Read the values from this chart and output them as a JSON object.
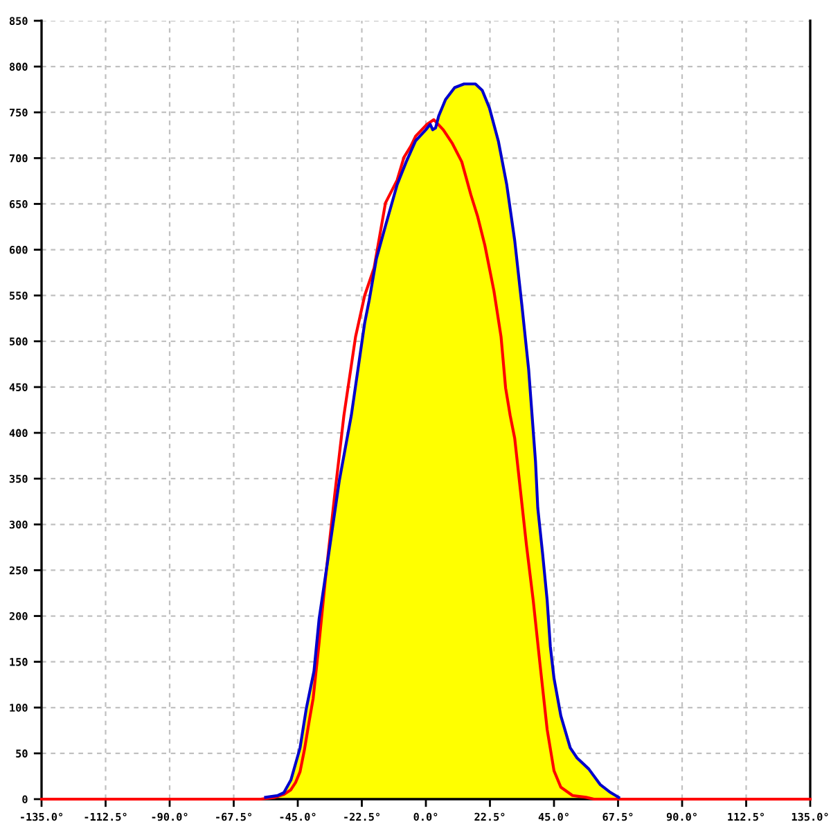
{
  "chart_data": {
    "type": "line",
    "xlim": [
      -135,
      135
    ],
    "ylim": [
      0,
      850
    ],
    "grid": true,
    "line_style": "solid",
    "xticks": [
      {
        "value": -135,
        "label": "-135.0°"
      },
      {
        "value": -112.5,
        "label": "-112.5°"
      },
      {
        "value": -90,
        "label": "-90.0°"
      },
      {
        "value": -67.5,
        "label": "-67.5°"
      },
      {
        "value": -45,
        "label": "-45.0°"
      },
      {
        "value": -22.5,
        "label": "-22.5°"
      },
      {
        "value": 0,
        "label": "0.0°"
      },
      {
        "value": 22.5,
        "label": "22.5°"
      },
      {
        "value": 45,
        "label": "45.0°"
      },
      {
        "value": 67.5,
        "label": "67.5°"
      },
      {
        "value": 90,
        "label": "90.0°"
      },
      {
        "value": 112.5,
        "label": "112.5°"
      },
      {
        "value": 135,
        "label": "135.0°"
      }
    ],
    "yticks": [
      0,
      50,
      100,
      150,
      200,
      250,
      300,
      350,
      400,
      450,
      500,
      550,
      600,
      650,
      700,
      750,
      800,
      850
    ],
    "series": [
      {
        "type": "area",
        "color": "#ffff00",
        "x": [
          -58,
          -56.3,
          -52,
          -49.9,
          -47.4,
          -44.2,
          -42,
          -39.3,
          -37.5,
          -34.4,
          -30.4,
          -26.2,
          -21.5,
          -19.9,
          -17.4,
          -14.2,
          -10.1,
          -6.9,
          -3.6,
          0,
          1.5,
          2.4,
          3.4,
          4.5,
          6.9,
          10.1,
          13.4,
          17.4,
          19.8,
          22.3,
          25.5,
          28.4,
          31.2,
          33.7,
          36.1,
          38.5,
          39.3,
          41,
          42.6,
          43.7,
          45,
          47.4,
          50.7,
          53.1,
          57.2,
          61.2,
          64.5,
          67.7,
          69
        ],
        "values": [
          0,
          2,
          4,
          7,
          21,
          56,
          99,
          140,
          197,
          262,
          348,
          419,
          520,
          545,
          590,
          626,
          671,
          696,
          719,
          731,
          737,
          731,
          733,
          746,
          764,
          777,
          781,
          781,
          774,
          755,
          718,
          671,
          610,
          540,
          469,
          369,
          318,
          268,
          217,
          167,
          132,
          91,
          56,
          45,
          33,
          16,
          8,
          2,
          0
        ]
      },
      {
        "color": "#ff0000",
        "x": [
          -135,
          -58,
          -53,
          -50,
          -47.5,
          -45.8,
          -44.2,
          -42.6,
          -41,
          -39.6,
          -37.7,
          -35.3,
          -32,
          -28.8,
          -24.7,
          -21.5,
          -18.2,
          -14.2,
          -10.1,
          -7.7,
          -5.3,
          -3.6,
          0.4,
          2.8,
          6.1,
          9.3,
          12.6,
          15.8,
          18.2,
          20.7,
          23.9,
          26.4,
          28,
          29.6,
          31.2,
          35.3,
          37.7,
          40.1,
          42.6,
          45,
          47.4,
          51.5,
          56.3,
          59,
          135
        ],
        "values": [
          0,
          0,
          2,
          5,
          10,
          18,
          30,
          55,
          85,
          110,
          165,
          240,
          333,
          419,
          505,
          550,
          580,
          651,
          676,
          701,
          713,
          724,
          737,
          742,
          731,
          716,
          696,
          660,
          636,
          605,
          555,
          505,
          449,
          419,
          394,
          278,
          217,
          147,
          76,
          31,
          13,
          4,
          2,
          0,
          0
        ]
      },
      {
        "color": "#0000cc",
        "x": [
          -56.3,
          -52,
          -49.9,
          -47.4,
          -44.2,
          -42,
          -39.3,
          -37.5,
          -34.4,
          -30.4,
          -26.2,
          -21.5,
          -19.9,
          -17.4,
          -14.2,
          -10.1,
          -6.9,
          -3.6,
          0,
          1.5,
          2.4,
          3.4,
          4.5,
          6.9,
          10.1,
          13.4,
          17.4,
          19.8,
          22.3,
          25.5,
          28.4,
          31.2,
          33.7,
          36.1,
          38.5,
          39.3,
          41,
          42.6,
          43.7,
          45,
          47.4,
          50.7,
          53.1,
          57.2,
          61.2,
          64.5,
          67.7
        ],
        "values": [
          2,
          4,
          7,
          21,
          56,
          99,
          140,
          197,
          262,
          348,
          419,
          520,
          545,
          590,
          626,
          671,
          696,
          719,
          731,
          737,
          731,
          733,
          746,
          764,
          777,
          781,
          781,
          774,
          755,
          718,
          671,
          610,
          540,
          469,
          369,
          318,
          268,
          217,
          167,
          132,
          91,
          56,
          45,
          33,
          16,
          8,
          2
        ]
      }
    ]
  }
}
